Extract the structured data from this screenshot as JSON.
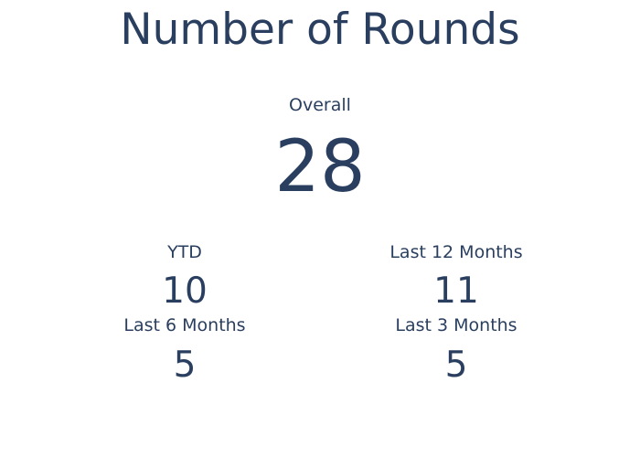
{
  "chart_data": {
    "type": "table",
    "title": "Number of Rounds",
    "indicators": [
      {
        "label": "Overall",
        "value": 28
      },
      {
        "label": "YTD",
        "value": 10
      },
      {
        "label": "Last 12 Months",
        "value": 11
      },
      {
        "label": "Last 6 Months",
        "value": 5
      },
      {
        "label": "Last 3 Months",
        "value": 5
      }
    ]
  },
  "colors": {
    "text": "#2a3f5f",
    "background": "#ffffff"
  }
}
